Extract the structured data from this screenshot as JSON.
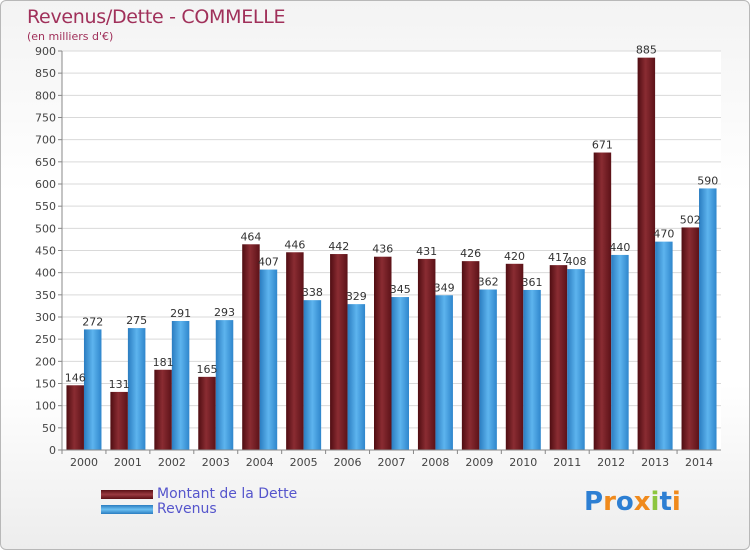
{
  "header": {
    "title": "Revenus/Dette - COMMELLE",
    "subtitle": "(en milliers d'€)"
  },
  "colors": {
    "debt": "#7a1f25",
    "revenue": "#3d9de0",
    "title": "#a0305a",
    "legend_text": "#5555cc"
  },
  "logo": {
    "letters": [
      "P",
      "r",
      "o",
      "x",
      "i",
      "t",
      "i"
    ],
    "colors": [
      "#2d7fd3",
      "#f08a1c",
      "#2d7fd3",
      "#f08a1c",
      "#8dc63f",
      "#2d7fd3",
      "#f08a1c"
    ]
  },
  "chart_data": {
    "type": "bar",
    "categories": [
      "2000",
      "2001",
      "2002",
      "2003",
      "2004",
      "2005",
      "2006",
      "2007",
      "2008",
      "2009",
      "2010",
      "2011",
      "2012",
      "2013",
      "2014"
    ],
    "series": [
      {
        "name": "Montant de la Dette",
        "values": [
          146,
          131,
          181,
          165,
          464,
          446,
          442,
          436,
          431,
          426,
          420,
          417,
          671,
          885,
          502
        ]
      },
      {
        "name": "Revenus",
        "values": [
          272,
          275,
          291,
          293,
          407,
          338,
          329,
          345,
          349,
          362,
          361,
          408,
          440,
          470,
          590
        ]
      }
    ],
    "title": "Revenus/Dette - COMMELLE",
    "subtitle": "(en milliers d'€)",
    "ylim": [
      0,
      900
    ],
    "yticks": [
      0,
      50,
      100,
      150,
      200,
      250,
      300,
      350,
      400,
      450,
      500,
      550,
      600,
      650,
      700,
      750,
      800,
      850,
      900
    ],
    "grid": true,
    "legend": "bottom-left"
  }
}
